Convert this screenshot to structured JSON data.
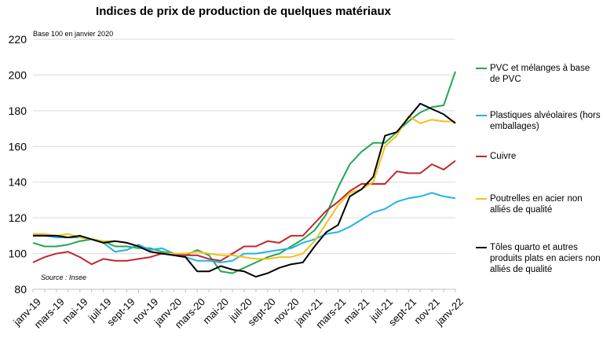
{
  "chart_data": {
    "type": "line",
    "title": "Indices de prix de production de quelques matériaux",
    "subtitle": "Base 100 en janvier 2020",
    "source": "Source : Insee",
    "xlabel": "",
    "ylabel": "",
    "ylim": [
      80,
      220
    ],
    "yticks": [
      80,
      100,
      120,
      140,
      160,
      180,
      200,
      220
    ],
    "grid": "horizontal",
    "legend_position": "right",
    "x": [
      "janv-19",
      "févr-19",
      "mars-19",
      "avr-19",
      "mai-19",
      "juin-19",
      "juil-19",
      "août-19",
      "sept-19",
      "oct-19",
      "nov-19",
      "déc-19",
      "janv-20",
      "févr-20",
      "mars-20",
      "avr-20",
      "mai-20",
      "juin-20",
      "juil-20",
      "août-20",
      "sept-20",
      "oct-20",
      "nov-20",
      "déc-20",
      "janv-21",
      "févr-21",
      "mars-21",
      "avr-21",
      "mai-21",
      "juin-21",
      "juil-21",
      "août-21",
      "sept-21",
      "oct-21",
      "nov-21",
      "déc-21",
      "janv-22"
    ],
    "xtick_labels": [
      "janv-19",
      "mars-19",
      "mai-19",
      "juil-19",
      "sept-19",
      "nov-19",
      "janv-20",
      "mars-20",
      "mai-20",
      "juil-20",
      "sept-20",
      "nov-20",
      "janv-21",
      "mars-21",
      "mai-21",
      "juil-21",
      "sept-21",
      "nov-21",
      "janv-22"
    ],
    "series": [
      {
        "name": "PVC et mélanges à base de PVC",
        "color": "#21a84f",
        "values": [
          106,
          104,
          104,
          105,
          107,
          108,
          107,
          104,
          104,
          103,
          103,
          101,
          100,
          99,
          102,
          99,
          90,
          89,
          92,
          95,
          98,
          100,
          104,
          108,
          113,
          122,
          137,
          150,
          157,
          162,
          162,
          168,
          174,
          179,
          182,
          183,
          202
        ]
      },
      {
        "name": "Plastiques alvéolaires (hors emballages)",
        "color": "#1fb3e8",
        "values": [
          111,
          110,
          109,
          109,
          109,
          108,
          106,
          101,
          102,
          105,
          102,
          103,
          100,
          98,
          96,
          96,
          95,
          96,
          100,
          100,
          101,
          102,
          103,
          106,
          108,
          111,
          112,
          115,
          119,
          123,
          125,
          129,
          131,
          132,
          134,
          132,
          131
        ]
      },
      {
        "name": "Cuivre",
        "color": "#c0272d",
        "values": [
          95,
          98,
          100,
          101,
          98,
          94,
          97,
          96,
          96,
          97,
          98,
          100,
          100,
          99,
          99,
          97,
          96,
          100,
          104,
          104,
          107,
          106,
          110,
          110,
          117,
          124,
          129,
          135,
          139,
          139,
          139,
          146,
          145,
          145,
          150,
          147,
          152
        ]
      },
      {
        "name": "Poutrelles en acier non alliés de qualité",
        "color": "#f7be1a",
        "values": [
          111,
          111,
          110,
          111,
          109,
          108,
          107,
          107,
          106,
          104,
          101,
          100,
          100,
          100,
          101,
          100,
          99,
          99,
          98,
          97,
          97,
          98,
          98,
          100,
          107,
          117,
          127,
          134,
          136,
          140,
          160,
          166,
          177,
          173,
          175,
          174,
          174
        ]
      },
      {
        "name": "Tôles quarto et autres produits plats en aciers non alliés de qualité",
        "color": "#000000",
        "values": [
          110,
          110,
          110,
          109,
          110,
          108,
          106,
          107,
          106,
          104,
          101,
          100,
          99,
          98,
          90,
          90,
          93,
          91,
          90,
          87,
          89,
          92,
          94,
          95,
          104,
          112,
          116,
          132,
          136,
          143,
          166,
          168,
          176,
          184,
          181,
          178,
          173
        ]
      }
    ]
  }
}
